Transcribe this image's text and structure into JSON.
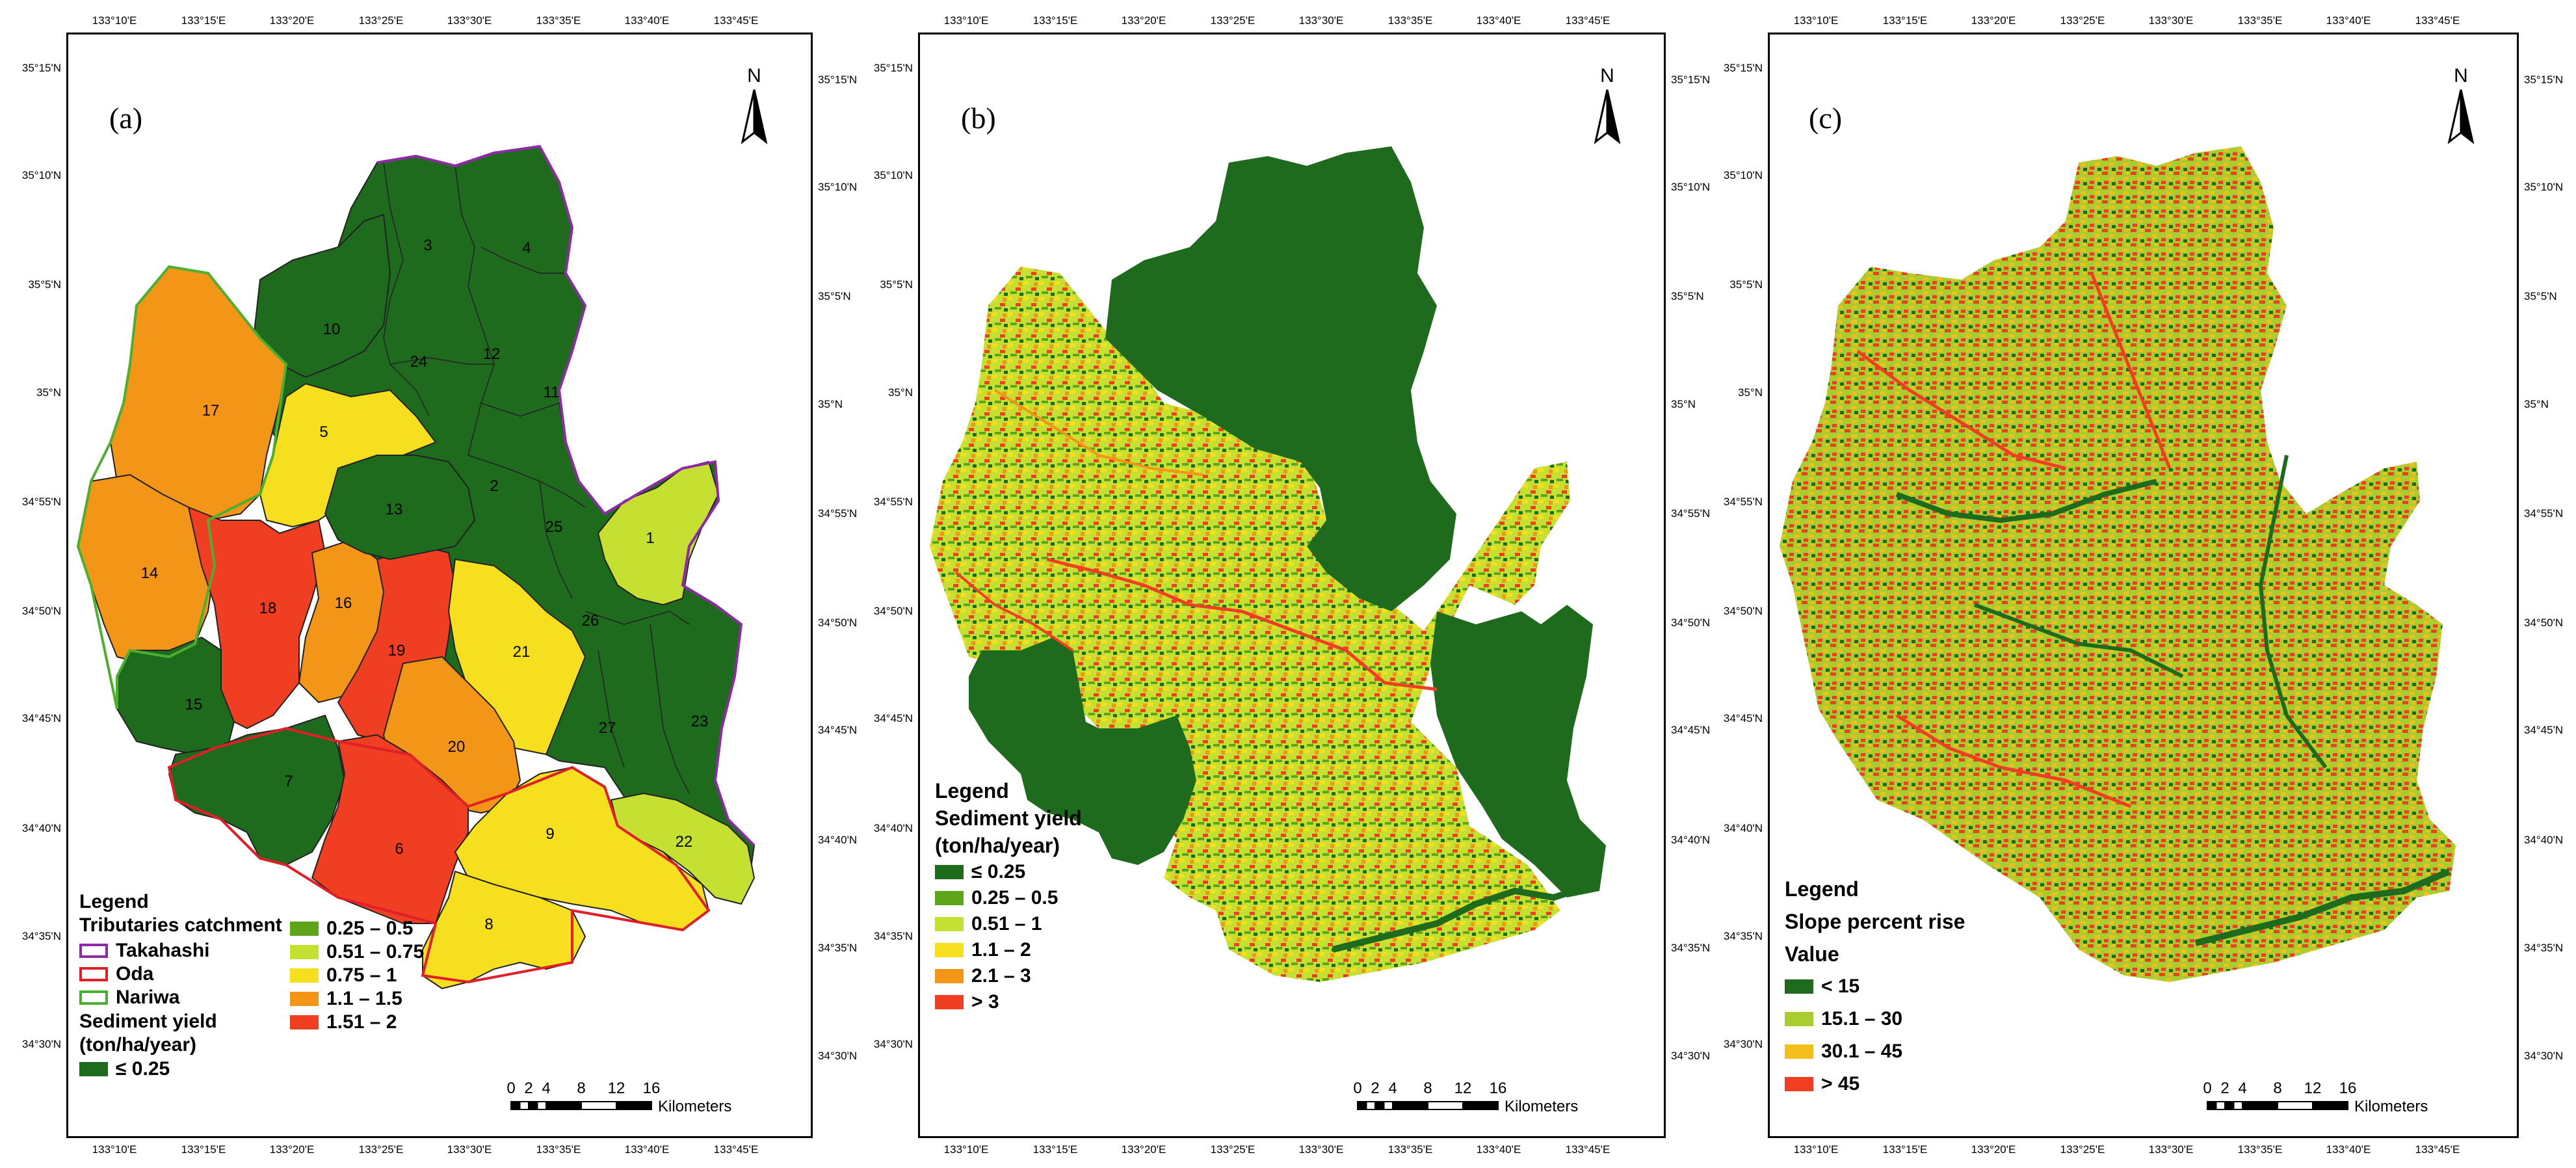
{
  "coords": {
    "lon_ticks": [
      "133°10'E",
      "133°15'E",
      "133°20'E",
      "133°25'E",
      "133°30'E",
      "133°35'E",
      "133°40'E",
      "133°45'E"
    ],
    "lat_ticks": [
      "35°15'N",
      "35°10'N",
      "35°5'N",
      "35°N",
      "34°55'N",
      "34°50'N",
      "34°45'N",
      "34°40'N",
      "34°35'N",
      "34°30'N"
    ]
  },
  "north_arrow": {
    "label": "N"
  },
  "scale_bar": {
    "ticks": [
      "0",
      "2",
      "4",
      "8",
      "12",
      "16"
    ],
    "unit": "Kilometers"
  },
  "panel_a": {
    "letter": "(a)",
    "catchment_numbers": [
      "1",
      "2",
      "3",
      "4",
      "5",
      "6",
      "7",
      "8",
      "9",
      "10",
      "11",
      "12",
      "13",
      "14",
      "15",
      "16",
      "17",
      "18",
      "19",
      "20",
      "21",
      "22",
      "23",
      "24",
      "25",
      "26",
      "27"
    ],
    "legend": {
      "title": "Legend",
      "subtitle": "Tributaries catchment",
      "outlines": [
        {
          "label": "Takahashi",
          "color": "#8e2aa6"
        },
        {
          "label": "Oda",
          "color": "#e01f26"
        },
        {
          "label": "Nariwa",
          "color": "#4caf2f"
        }
      ],
      "sy_title_1": "Sediment yield",
      "sy_title_2": "(ton/ha/year)",
      "classes": [
        {
          "label": "≤ 0.25",
          "color": "#1e6b1e"
        },
        {
          "label": "0.25 – 0.5",
          "color": "#5da51a"
        },
        {
          "label": "0.51 – 0.75",
          "color": "#c6e032"
        },
        {
          "label": "0.75 – 1",
          "color": "#f6df1f"
        },
        {
          "label": "1.1 – 1.5",
          "color": "#f39517"
        },
        {
          "label": "1.51 – 2",
          "color": "#ef3e22"
        }
      ]
    }
  },
  "panel_b": {
    "letter": "(b)",
    "legend": {
      "title": "Legend",
      "subtitle_1": "Sediment yield",
      "subtitle_2": "(ton/ha/year)",
      "classes": [
        {
          "label": "≤ 0.25",
          "color": "#1e6b1e"
        },
        {
          "label": "0.25 – 0.5",
          "color": "#5da51a"
        },
        {
          "label": "0.51 – 1",
          "color": "#c6e032"
        },
        {
          "label": "1.1 – 2",
          "color": "#f6df1f"
        },
        {
          "label": "2.1 – 3",
          "color": "#f39517"
        },
        {
          "label": "> 3",
          "color": "#ef3e22"
        }
      ]
    }
  },
  "panel_c": {
    "letter": "(c)",
    "legend": {
      "title": "Legend",
      "subtitle_1": "Slope percent rise",
      "subtitle_2": "Value",
      "classes": [
        {
          "label": "< 15",
          "color": "#1e6b1e"
        },
        {
          "label": "15.1 – 30",
          "color": "#a9cc2e"
        },
        {
          "label": "30.1 – 45",
          "color": "#f4bf1c"
        },
        {
          "label": "> 45",
          "color": "#ef3e22"
        }
      ]
    }
  }
}
